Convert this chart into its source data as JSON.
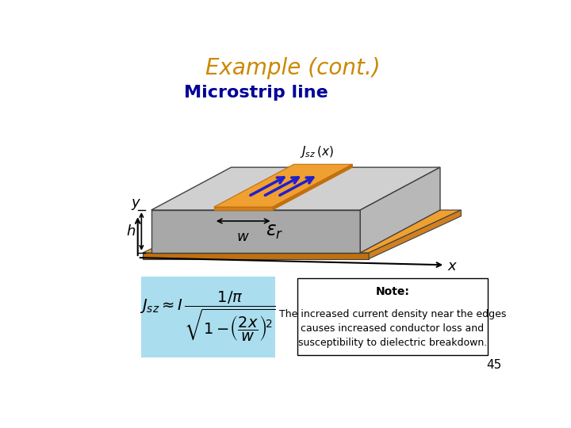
{
  "title": "Example (cont.)",
  "subtitle": "Microstrip line",
  "title_color": "#CC8800",
  "subtitle_color": "#000099",
  "bg_color": "#ffffff",
  "note_title": "Note:",
  "note_text": "The increased current density near the edges\ncauses increased conductor loss and\nsusceptibility to dielectric breakdown.",
  "page_number": "45",
  "formula_bg": "#AADDEE",
  "gray_top": "#D0D0D0",
  "gray_front": "#A8A8A8",
  "gray_right": "#B8B8B8",
  "orange_bright": "#F0A030",
  "orange_dark": "#C07010",
  "orange_side": "#D08020",
  "edge_color": "#404040",
  "arrow_blue": "#2020CC"
}
